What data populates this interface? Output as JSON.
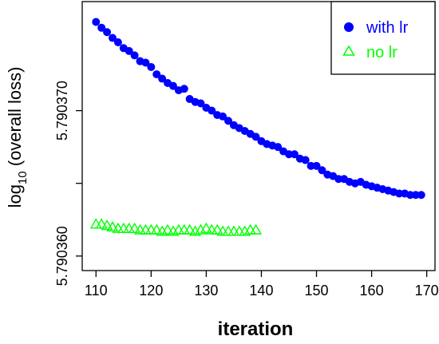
{
  "chart_data": {
    "type": "scatter",
    "xlabel": "iteration",
    "ylabel": {
      "base": "log",
      "subscript": "10",
      "rest": " (overall loss)"
    },
    "xlim": [
      107.5,
      171.5
    ],
    "ylim": [
      5.790359,
      5.7903775
    ],
    "xticks": [
      110,
      120,
      130,
      140,
      150,
      160,
      170
    ],
    "xtick_labels": [
      "110",
      "120",
      "130",
      "140",
      "150",
      "160",
      "170"
    ],
    "yticks": [
      5.79036,
      5.790365,
      5.79037
    ],
    "ytick_labels": [
      "5.790360",
      "",
      "5.790370"
    ],
    "grid": false,
    "legend_position": "top-right",
    "series": [
      {
        "name": "with lr",
        "color": "#0000ff",
        "marker": "filled-circle",
        "x": [
          110,
          111,
          112,
          113,
          114,
          115,
          116,
          117,
          118,
          119,
          120,
          121,
          122,
          123,
          124,
          125,
          126,
          127,
          128,
          129,
          130,
          131,
          132,
          133,
          134,
          135,
          136,
          137,
          138,
          139,
          140,
          141,
          142,
          143,
          144,
          145,
          146,
          147,
          148,
          149,
          150,
          151,
          152,
          153,
          154,
          155,
          156,
          157,
          158,
          159,
          160,
          161,
          162,
          163,
          164,
          165,
          166,
          167,
          168,
          169
        ],
        "y": [
          5.7903761,
          5.7903757,
          5.7903754,
          5.790375,
          5.7903747,
          5.7903743,
          5.7903741,
          5.7903738,
          5.7903734,
          5.7903733,
          5.790373,
          5.7903725,
          5.7903722,
          5.7903719,
          5.7903717,
          5.7903714,
          5.7903715,
          5.7903708,
          5.7903706,
          5.7903705,
          5.7903702,
          5.79037,
          5.7903697,
          5.7903696,
          5.7903693,
          5.790369,
          5.7903688,
          5.7903686,
          5.7903684,
          5.7903682,
          5.7903679,
          5.7903677,
          5.7903676,
          5.7903675,
          5.7903672,
          5.790367,
          5.790367,
          5.7903667,
          5.7903666,
          5.7903662,
          5.7903662,
          5.7903659,
          5.7903656,
          5.7903655,
          5.7903653,
          5.7903653,
          5.7903651,
          5.790365,
          5.7903651,
          5.7903649,
          5.7903648,
          5.7903647,
          5.7903646,
          5.7903645,
          5.7903644,
          5.7903643,
          5.7903643,
          5.7903642,
          5.7903642,
          5.7903642
        ]
      },
      {
        "name": "no lr",
        "color": "#00ff00",
        "marker": "open-triangle",
        "x": [
          110,
          111,
          112,
          113,
          114,
          115,
          116,
          117,
          118,
          119,
          120,
          121,
          122,
          123,
          124,
          125,
          126,
          127,
          128,
          129,
          130,
          131,
          132,
          133,
          134,
          135,
          136,
          137,
          138,
          139
        ],
        "y": [
          5.7903622,
          5.7903622,
          5.7903621,
          5.790362,
          5.7903619,
          5.7903619,
          5.7903619,
          5.7903619,
          5.7903618,
          5.7903618,
          5.7903618,
          5.7903618,
          5.7903617,
          5.7903618,
          5.7903617,
          5.7903618,
          5.7903618,
          5.7903618,
          5.7903617,
          5.7903618,
          5.7903619,
          5.7903618,
          5.7903618,
          5.7903617,
          5.7903617,
          5.7903617,
          5.7903617,
          5.7903617,
          5.7903618,
          5.7903618
        ]
      }
    ]
  }
}
